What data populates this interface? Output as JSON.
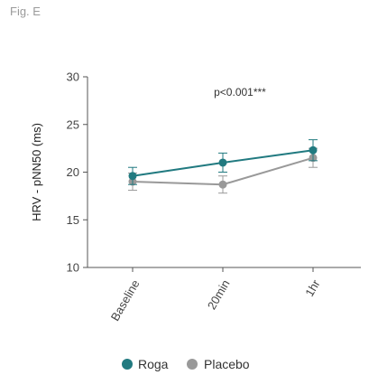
{
  "figure": {
    "label": "Fig. E"
  },
  "chart_data": {
    "type": "line",
    "categories": [
      "Baseline",
      "20min",
      "1hr"
    ],
    "ylabel": "HRV - pNN50 (ms)",
    "xlabel": "",
    "ylim": [
      10,
      30
    ],
    "yticks": [
      10,
      15,
      20,
      25,
      30
    ],
    "annotation": "p<0.001***",
    "grid": false,
    "legend_position": "bottom-center",
    "series": [
      {
        "name": "Roga",
        "color": "#217a80",
        "values": [
          19.6,
          21.0,
          22.3
        ],
        "errors": [
          0.9,
          1.0,
          1.1
        ]
      },
      {
        "name": "Placebo",
        "color": "#999999",
        "values": [
          19.0,
          18.7,
          21.5
        ],
        "errors": [
          0.9,
          0.9,
          1.0
        ]
      }
    ]
  }
}
